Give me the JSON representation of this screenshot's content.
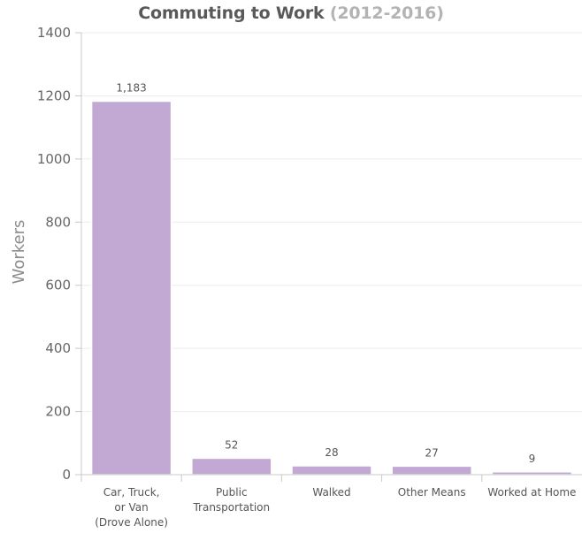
{
  "chart_data": {
    "type": "bar",
    "title": "Commuting to Work",
    "subtitle": "(2012-2016)",
    "ylabel": "Workers",
    "xlabel": "",
    "ylim": [
      0,
      1400
    ],
    "yticks": [
      0,
      200,
      400,
      600,
      800,
      1000,
      1200,
      1400
    ],
    "grid": true,
    "categories": [
      [
        "Car, Truck,",
        "or Van",
        "(Drove Alone)"
      ],
      [
        "Public",
        "Transportation"
      ],
      [
        "Walked"
      ],
      [
        "Other Means"
      ],
      [
        "Worked at Home"
      ]
    ],
    "values": [
      1183,
      52,
      28,
      27,
      9
    ],
    "data_labels": [
      "1,183",
      "52",
      "28",
      "27",
      "9"
    ],
    "colors": {
      "bar": "#c2a9d3",
      "bar_edge": "#ffffff",
      "grid": "#ececec",
      "axis": "#c8c8c8"
    }
  }
}
